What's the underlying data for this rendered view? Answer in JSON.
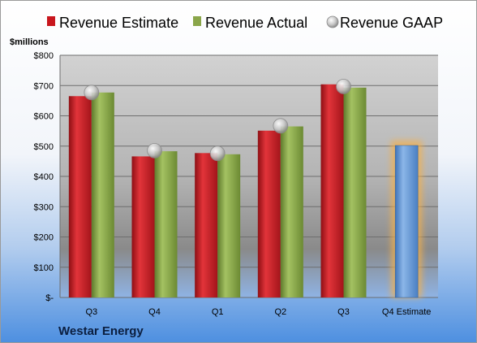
{
  "chart_data": {
    "type": "bar",
    "unit_label": "$millions",
    "company": "Westar Energy",
    "categories": [
      "Q3",
      "Q4",
      "Q1",
      "Q2",
      "Q3",
      "Q4 Estimate"
    ],
    "y_ticks": [
      "$-",
      "$100",
      "$200",
      "$300",
      "$400",
      "$500",
      "$600",
      "$700",
      "$800"
    ],
    "ylim": [
      0,
      800
    ],
    "grid": true,
    "legend_position": "top",
    "series": [
      {
        "name": "Revenue Estimate",
        "kind": "bar",
        "color": "#c8161d",
        "values": [
          665,
          466,
          477,
          551,
          704,
          null
        ]
      },
      {
        "name": "Revenue Actual",
        "kind": "bar",
        "color": "#8aa64a",
        "values": [
          677,
          483,
          473,
          565,
          693,
          null
        ]
      },
      {
        "name": "Revenue GAAP",
        "kind": "marker",
        "color": "#c0c0c0",
        "values": [
          677,
          485,
          476,
          567,
          697,
          null
        ]
      },
      {
        "name": "Q4 Estimate",
        "kind": "bar",
        "color": "#6b9fd8",
        "highlight": "#f5b04a",
        "values": [
          null,
          null,
          null,
          null,
          null,
          502
        ]
      }
    ]
  }
}
